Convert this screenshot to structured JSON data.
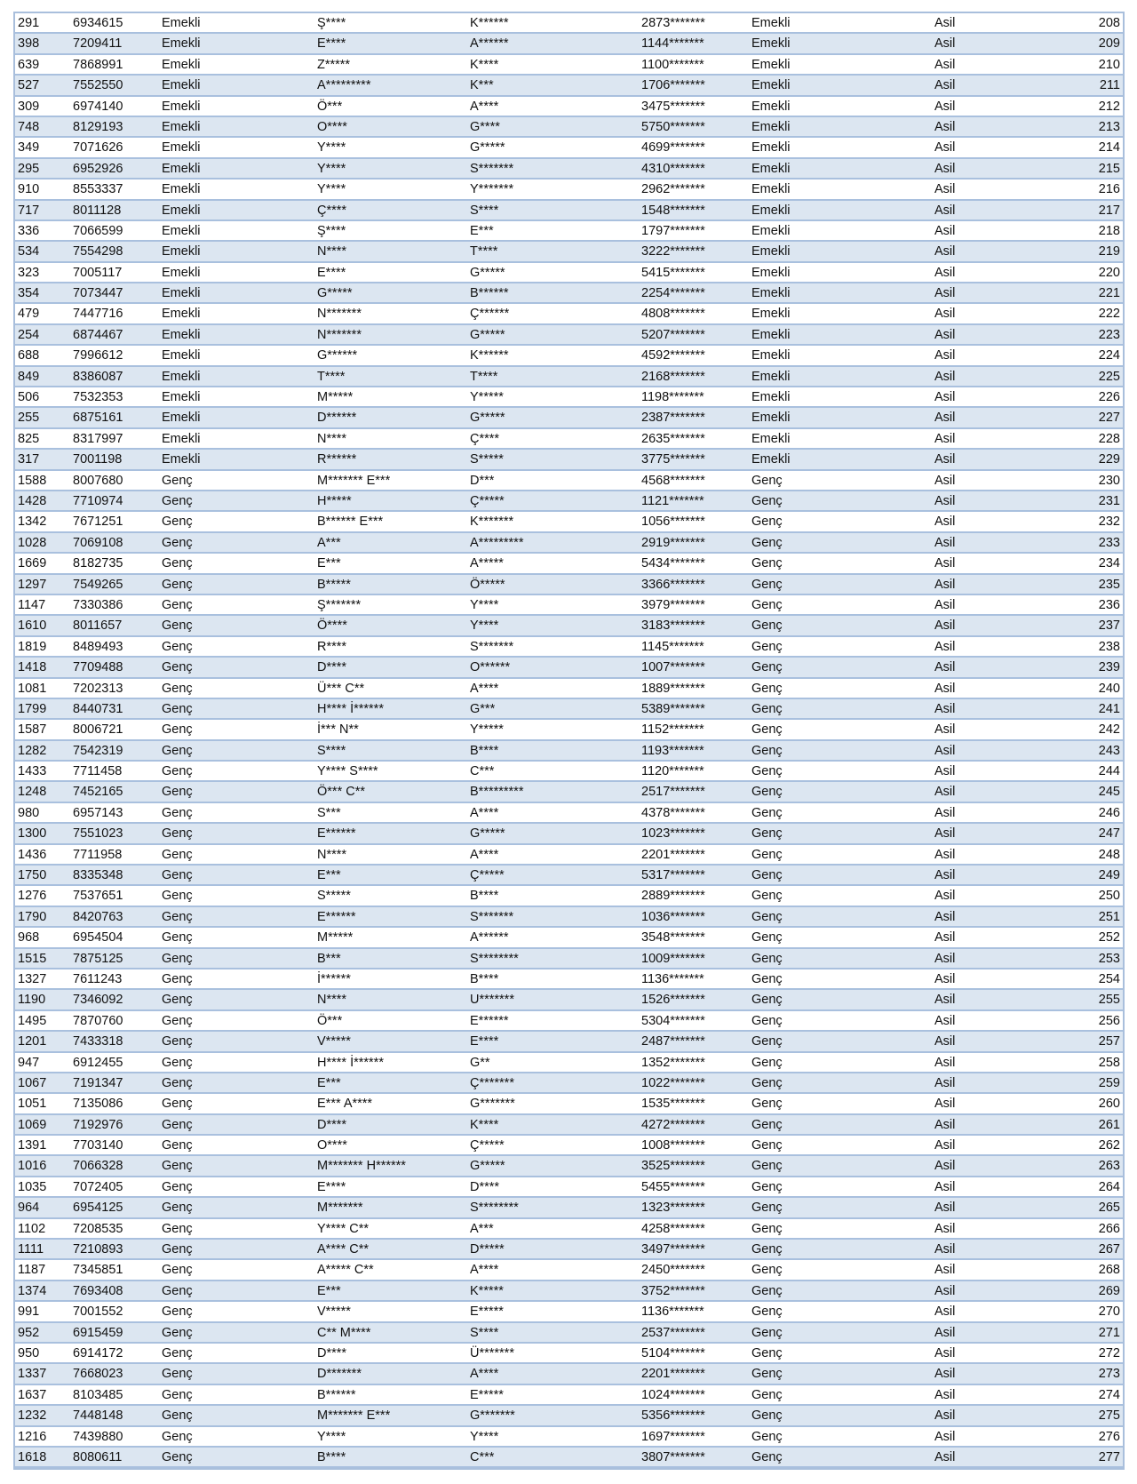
{
  "table": {
    "masked_suffix": "*******",
    "colors": {
      "row_alt": "#dce6f1",
      "row": "#ffffff",
      "border": "#a9c0de"
    },
    "rows": [
      [
        "291",
        "6934615",
        "Emekli",
        "Ş****",
        "K******",
        "2873*******",
        "Emekli",
        "Asil",
        "208"
      ],
      [
        "398",
        "7209411",
        "Emekli",
        "E****",
        "A******",
        "1144*******",
        "Emekli",
        "Asil",
        "209"
      ],
      [
        "639",
        "7868991",
        "Emekli",
        "Z*****",
        "K****",
        "1100*******",
        "Emekli",
        "Asil",
        "210"
      ],
      [
        "527",
        "7552550",
        "Emekli",
        "A*********",
        "K***",
        "1706*******",
        "Emekli",
        "Asil",
        "211"
      ],
      [
        "309",
        "6974140",
        "Emekli",
        "Ö***",
        "A****",
        "3475*******",
        "Emekli",
        "Asil",
        "212"
      ],
      [
        "748",
        "8129193",
        "Emekli",
        "O****",
        "G****",
        "5750*******",
        "Emekli",
        "Asil",
        "213"
      ],
      [
        "349",
        "7071626",
        "Emekli",
        "Y****",
        "G*****",
        "4699*******",
        "Emekli",
        "Asil",
        "214"
      ],
      [
        "295",
        "6952926",
        "Emekli",
        "Y****",
        "S*******",
        "4310*******",
        "Emekli",
        "Asil",
        "215"
      ],
      [
        "910",
        "8553337",
        "Emekli",
        "Y****",
        "Y*******",
        "2962*******",
        "Emekli",
        "Asil",
        "216"
      ],
      [
        "717",
        "8011128",
        "Emekli",
        "Ç****",
        "S****",
        "1548*******",
        "Emekli",
        "Asil",
        "217"
      ],
      [
        "336",
        "7066599",
        "Emekli",
        "Ş****",
        "E***",
        "1797*******",
        "Emekli",
        "Asil",
        "218"
      ],
      [
        "534",
        "7554298",
        "Emekli",
        "N****",
        "T****",
        "3222*******",
        "Emekli",
        "Asil",
        "219"
      ],
      [
        "323",
        "7005117",
        "Emekli",
        "E****",
        "G*****",
        "5415*******",
        "Emekli",
        "Asil",
        "220"
      ],
      [
        "354",
        "7073447",
        "Emekli",
        "G*****",
        "B******",
        "2254*******",
        "Emekli",
        "Asil",
        "221"
      ],
      [
        "479",
        "7447716",
        "Emekli",
        "N*******",
        "Ç******",
        "4808*******",
        "Emekli",
        "Asil",
        "222"
      ],
      [
        "254",
        "6874467",
        "Emekli",
        "N*******",
        "G*****",
        "5207*******",
        "Emekli",
        "Asil",
        "223"
      ],
      [
        "688",
        "7996612",
        "Emekli",
        "G******",
        "K******",
        "4592*******",
        "Emekli",
        "Asil",
        "224"
      ],
      [
        "849",
        "8386087",
        "Emekli",
        "T****",
        "T****",
        "2168*******",
        "Emekli",
        "Asil",
        "225"
      ],
      [
        "506",
        "7532353",
        "Emekli",
        "M*****",
        "Y*****",
        "1198*******",
        "Emekli",
        "Asil",
        "226"
      ],
      [
        "255",
        "6875161",
        "Emekli",
        "D******",
        "G*****",
        "2387*******",
        "Emekli",
        "Asil",
        "227"
      ],
      [
        "825",
        "8317997",
        "Emekli",
        "N****",
        "Ç****",
        "2635*******",
        "Emekli",
        "Asil",
        "228"
      ],
      [
        "317",
        "7001198",
        "Emekli",
        "R******",
        "S*****",
        "3775*******",
        "Emekli",
        "Asil",
        "229"
      ],
      [
        "1588",
        "8007680",
        "Genç",
        "M******* E***",
        "D***",
        "4568*******",
        "Genç",
        "Asil",
        "230"
      ],
      [
        "1428",
        "7710974",
        "Genç",
        "H*****",
        "Ç*****",
        "1121*******",
        "Genç",
        "Asil",
        "231"
      ],
      [
        "1342",
        "7671251",
        "Genç",
        "B****** E***",
        "K*******",
        "1056*******",
        "Genç",
        "Asil",
        "232"
      ],
      [
        "1028",
        "7069108",
        "Genç",
        "A***",
        "A*********",
        "2919*******",
        "Genç",
        "Asil",
        "233"
      ],
      [
        "1669",
        "8182735",
        "Genç",
        "E***",
        "A*****",
        "5434*******",
        "Genç",
        "Asil",
        "234"
      ],
      [
        "1297",
        "7549265",
        "Genç",
        "B*****",
        "Ö*****",
        "3366*******",
        "Genç",
        "Asil",
        "235"
      ],
      [
        "1147",
        "7330386",
        "Genç",
        "Ş*******",
        "Y****",
        "3979*******",
        "Genç",
        "Asil",
        "236"
      ],
      [
        "1610",
        "8011657",
        "Genç",
        "Ö****",
        "Y****",
        "3183*******",
        "Genç",
        "Asil",
        "237"
      ],
      [
        "1819",
        "8489493",
        "Genç",
        "R****",
        "S*******",
        "1145*******",
        "Genç",
        "Asil",
        "238"
      ],
      [
        "1418",
        "7709488",
        "Genç",
        "D****",
        "O******",
        "1007*******",
        "Genç",
        "Asil",
        "239"
      ],
      [
        "1081",
        "7202313",
        "Genç",
        "Ü*** C**",
        "A****",
        "1889*******",
        "Genç",
        "Asil",
        "240"
      ],
      [
        "1799",
        "8440731",
        "Genç",
        "H**** İ******",
        "G***",
        "5389*******",
        "Genç",
        "Asil",
        "241"
      ],
      [
        "1587",
        "8006721",
        "Genç",
        "İ*** N**",
        "Y*****",
        "1152*******",
        "Genç",
        "Asil",
        "242"
      ],
      [
        "1282",
        "7542319",
        "Genç",
        "S****",
        "B****",
        "1193*******",
        "Genç",
        "Asil",
        "243"
      ],
      [
        "1433",
        "7711458",
        "Genç",
        "Y**** S****",
        "C***",
        "1120*******",
        "Genç",
        "Asil",
        "244"
      ],
      [
        "1248",
        "7452165",
        "Genç",
        "Ö*** C**",
        "B*********",
        "2517*******",
        "Genç",
        "Asil",
        "245"
      ],
      [
        "980",
        "6957143",
        "Genç",
        "S***",
        "A****",
        "4378*******",
        "Genç",
        "Asil",
        "246"
      ],
      [
        "1300",
        "7551023",
        "Genç",
        "E******",
        "G*****",
        "1023*******",
        "Genç",
        "Asil",
        "247"
      ],
      [
        "1436",
        "7711958",
        "Genç",
        "N****",
        "A****",
        "2201*******",
        "Genç",
        "Asil",
        "248"
      ],
      [
        "1750",
        "8335348",
        "Genç",
        "E***",
        "Ç*****",
        "5317*******",
        "Genç",
        "Asil",
        "249"
      ],
      [
        "1276",
        "7537651",
        "Genç",
        "S*****",
        "B****",
        "2889*******",
        "Genç",
        "Asil",
        "250"
      ],
      [
        "1790",
        "8420763",
        "Genç",
        "E******",
        "S*******",
        "1036*******",
        "Genç",
        "Asil",
        "251"
      ],
      [
        "968",
        "6954504",
        "Genç",
        "M*****",
        "A******",
        "3548*******",
        "Genç",
        "Asil",
        "252"
      ],
      [
        "1515",
        "7875125",
        "Genç",
        "B***",
        "S********",
        "1009*******",
        "Genç",
        "Asil",
        "253"
      ],
      [
        "1327",
        "7611243",
        "Genç",
        "İ******",
        "B****",
        "1136*******",
        "Genç",
        "Asil",
        "254"
      ],
      [
        "1190",
        "7346092",
        "Genç",
        "N****",
        "U*******",
        "1526*******",
        "Genç",
        "Asil",
        "255"
      ],
      [
        "1495",
        "7870760",
        "Genç",
        "Ö***",
        "E******",
        "5304*******",
        "Genç",
        "Asil",
        "256"
      ],
      [
        "1201",
        "7433318",
        "Genç",
        "V*****",
        "E****",
        "2487*******",
        "Genç",
        "Asil",
        "257"
      ],
      [
        "947",
        "6912455",
        "Genç",
        "H**** İ******",
        "G**",
        "1352*******",
        "Genç",
        "Asil",
        "258"
      ],
      [
        "1067",
        "7191347",
        "Genç",
        "E***",
        "Ç*******",
        "1022*******",
        "Genç",
        "Asil",
        "259"
      ],
      [
        "1051",
        "7135086",
        "Genç",
        "E*** A****",
        "G*******",
        "1535*******",
        "Genç",
        "Asil",
        "260"
      ],
      [
        "1069",
        "7192976",
        "Genç",
        "D****",
        "K****",
        "4272*******",
        "Genç",
        "Asil",
        "261"
      ],
      [
        "1391",
        "7703140",
        "Genç",
        "O****",
        "Ç*****",
        "1008*******",
        "Genç",
        "Asil",
        "262"
      ],
      [
        "1016",
        "7066328",
        "Genç",
        "M******* H******",
        "G*****",
        "3525*******",
        "Genç",
        "Asil",
        "263"
      ],
      [
        "1035",
        "7072405",
        "Genç",
        "E****",
        "D****",
        "5455*******",
        "Genç",
        "Asil",
        "264"
      ],
      [
        "964",
        "6954125",
        "Genç",
        "M*******",
        "S********",
        "1323*******",
        "Genç",
        "Asil",
        "265"
      ],
      [
        "1102",
        "7208535",
        "Genç",
        "Y**** C**",
        "A***",
        "4258*******",
        "Genç",
        "Asil",
        "266"
      ],
      [
        "1111",
        "7210893",
        "Genç",
        "A**** C**",
        "D*****",
        "3497*******",
        "Genç",
        "Asil",
        "267"
      ],
      [
        "1187",
        "7345851",
        "Genç",
        "A***** C**",
        "A****",
        "2450*******",
        "Genç",
        "Asil",
        "268"
      ],
      [
        "1374",
        "7693408",
        "Genç",
        "E***",
        "K*****",
        "3752*******",
        "Genç",
        "Asil",
        "269"
      ],
      [
        "991",
        "7001552",
        "Genç",
        "V*****",
        "E*****",
        "1136*******",
        "Genç",
        "Asil",
        "270"
      ],
      [
        "952",
        "6915459",
        "Genç",
        "C** M****",
        "S****",
        "2537*******",
        "Genç",
        "Asil",
        "271"
      ],
      [
        "950",
        "6914172",
        "Genç",
        "D****",
        "Ü*******",
        "5104*******",
        "Genç",
        "Asil",
        "272"
      ],
      [
        "1337",
        "7668023",
        "Genç",
        "D*******",
        "A****",
        "2201*******",
        "Genç",
        "Asil",
        "273"
      ],
      [
        "1637",
        "8103485",
        "Genç",
        "B******",
        "E*****",
        "1024*******",
        "Genç",
        "Asil",
        "274"
      ],
      [
        "1232",
        "7448148",
        "Genç",
        "M******* E***",
        "G*******",
        "5356*******",
        "Genç",
        "Asil",
        "275"
      ],
      [
        "1216",
        "7439880",
        "Genç",
        "Y****",
        "Y****",
        "1697*******",
        "Genç",
        "Asil",
        "276"
      ],
      [
        "1618",
        "8080611",
        "Genç",
        "B****",
        "C***",
        "3807*******",
        "Genç",
        "Asil",
        "277"
      ]
    ]
  }
}
